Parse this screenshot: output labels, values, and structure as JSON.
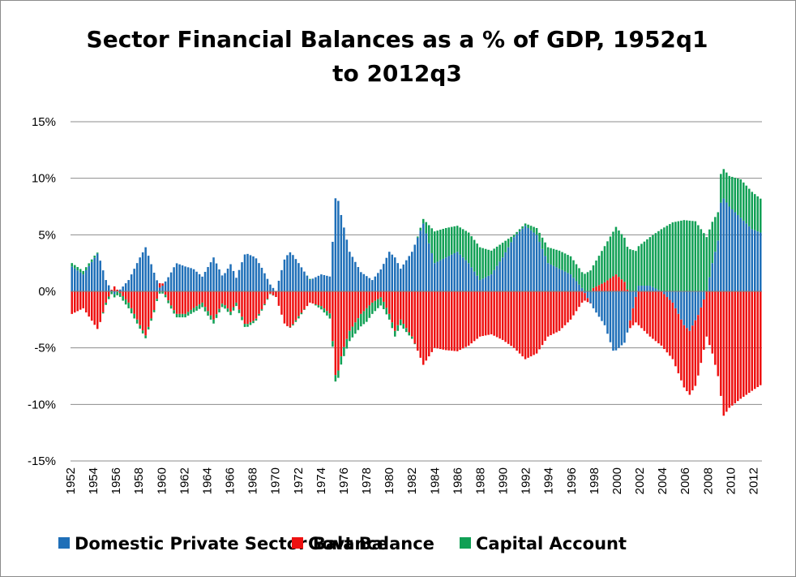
{
  "chart_data": {
    "type": "bar",
    "stacked": true,
    "title_lines": [
      "Sector Financial Balances as a % of GDP, 1952q1",
      "to 2012q3"
    ],
    "xlabel": "",
    "ylabel": "",
    "ylim": [
      -15,
      15
    ],
    "y_ticks": [
      15,
      10,
      5,
      0,
      -5,
      -10,
      -15
    ],
    "y_tick_labels": [
      "15%",
      "10%",
      "5%",
      "0%",
      "-5%",
      "-10%",
      "-15%"
    ],
    "x_tick_labels": [
      "1952",
      "1954",
      "1956",
      "1958",
      "1960",
      "1962",
      "1964",
      "1966",
      "1968",
      "1970",
      "1972",
      "1974",
      "1976",
      "1978",
      "1980",
      "1982",
      "1984",
      "1986",
      "1988",
      "1990",
      "1992",
      "1994",
      "1996",
      "1998",
      "2000",
      "2002",
      "2004",
      "2006",
      "2008",
      "2010",
      "2012"
    ],
    "x_range": [
      1952.0,
      2012.75
    ],
    "grid": true,
    "legend_position": "bottom",
    "series_keypoints_note_free": true,
    "series": [
      {
        "name": "Domestic Private Sector Balance",
        "color": "#1f6fb8",
        "keypoints": [
          [
            1952.0,
            2.2
          ],
          [
            1953.0,
            1.5
          ],
          [
            1954.3,
            3.4
          ],
          [
            1955.0,
            1.0
          ],
          [
            1955.7,
            -0.3
          ],
          [
            1956.3,
            0.2
          ],
          [
            1957.0,
            1.0
          ],
          [
            1958.0,
            3.0
          ],
          [
            1958.5,
            3.9
          ],
          [
            1959.3,
            1.5
          ],
          [
            1959.8,
            0.2
          ],
          [
            1960.6,
            1.4
          ],
          [
            1961.2,
            2.5
          ],
          [
            1962.0,
            2.2
          ],
          [
            1962.7,
            2.0
          ],
          [
            1963.5,
            1.3
          ],
          [
            1964.5,
            3.0
          ],
          [
            1965.3,
            1.3
          ],
          [
            1966.0,
            2.4
          ],
          [
            1966.5,
            1.2
          ],
          [
            1967.3,
            3.4
          ],
          [
            1968.2,
            3.0
          ],
          [
            1968.8,
            2.0
          ],
          [
            1969.5,
            0.6
          ],
          [
            1970.0,
            0.0
          ],
          [
            1970.8,
            3.0
          ],
          [
            1971.3,
            3.5
          ],
          [
            1972.0,
            2.5
          ],
          [
            1973.0,
            1.0
          ],
          [
            1974.0,
            1.5
          ],
          [
            1974.8,
            1.3
          ],
          [
            1975.3,
            9.0
          ],
          [
            1975.8,
            6.5
          ],
          [
            1976.5,
            3.5
          ],
          [
            1977.5,
            1.7
          ],
          [
            1978.5,
            1.0
          ],
          [
            1979.3,
            2.0
          ],
          [
            1980.0,
            3.5
          ],
          [
            1980.5,
            3.0
          ],
          [
            1981.0,
            2.0
          ],
          [
            1982.0,
            3.5
          ],
          [
            1983.0,
            6.0
          ],
          [
            1984.0,
            2.5
          ],
          [
            1985.0,
            3.0
          ],
          [
            1986.0,
            3.5
          ],
          [
            1987.0,
            2.5
          ],
          [
            1988.0,
            1.0
          ],
          [
            1989.0,
            1.5
          ],
          [
            1990.0,
            3.0
          ],
          [
            1991.0,
            4.8
          ],
          [
            1992.0,
            5.8
          ],
          [
            1993.0,
            5.0
          ],
          [
            1994.0,
            2.5
          ],
          [
            1995.0,
            2.0
          ],
          [
            1996.0,
            1.5
          ],
          [
            1997.0,
            0.3
          ],
          [
            1998.0,
            -1.5
          ],
          [
            1999.0,
            -3.0
          ],
          [
            1999.8,
            -5.4
          ],
          [
            2000.8,
            -4.5
          ],
          [
            2001.5,
            -1.5
          ],
          [
            2002.0,
            0.5
          ],
          [
            2003.0,
            0.5
          ],
          [
            2004.0,
            0.0
          ],
          [
            2005.0,
            -1.0
          ],
          [
            2006.0,
            -3.0
          ],
          [
            2006.5,
            -3.5
          ],
          [
            2007.3,
            -2.0
          ],
          [
            2008.0,
            0.0
          ],
          [
            2008.5,
            2.5
          ],
          [
            2009.0,
            4.5
          ],
          [
            2009.3,
            8.5
          ],
          [
            2010.0,
            7.5
          ],
          [
            2011.0,
            6.5
          ],
          [
            2012.0,
            5.5
          ],
          [
            2012.75,
            5.2
          ]
        ]
      },
      {
        "name": "Govt Balance",
        "color": "#ee1111",
        "keypoints": [
          [
            1952.0,
            -2.0
          ],
          [
            1953.0,
            -1.5
          ],
          [
            1954.3,
            -3.4
          ],
          [
            1955.0,
            -1.0
          ],
          [
            1955.7,
            0.5
          ],
          [
            1956.3,
            -0.2
          ],
          [
            1957.0,
            -1.0
          ],
          [
            1958.0,
            -3.0
          ],
          [
            1958.5,
            -3.9
          ],
          [
            1959.3,
            -1.5
          ],
          [
            1959.8,
            0.6
          ],
          [
            1960.6,
            -1.0
          ],
          [
            1961.2,
            -2.0
          ],
          [
            1962.0,
            -2.0
          ],
          [
            1962.7,
            -1.5
          ],
          [
            1963.5,
            -1.0
          ],
          [
            1964.5,
            -2.5
          ],
          [
            1965.3,
            -1.0
          ],
          [
            1966.0,
            -1.8
          ],
          [
            1966.5,
            -1.0
          ],
          [
            1967.3,
            -3.0
          ],
          [
            1968.2,
            -2.5
          ],
          [
            1968.8,
            -1.5
          ],
          [
            1969.5,
            -0.2
          ],
          [
            1970.0,
            -0.5
          ],
          [
            1970.8,
            -3.0
          ],
          [
            1971.3,
            -3.2
          ],
          [
            1972.0,
            -2.2
          ],
          [
            1973.0,
            -1.0
          ],
          [
            1974.0,
            -1.3
          ],
          [
            1974.8,
            -2.0
          ],
          [
            1975.3,
            -8.0
          ],
          [
            1975.8,
            -5.5
          ],
          [
            1976.5,
            -3.5
          ],
          [
            1977.5,
            -2.0
          ],
          [
            1978.5,
            -1.0
          ],
          [
            1979.3,
            -0.5
          ],
          [
            1980.0,
            -2.0
          ],
          [
            1980.5,
            -3.5
          ],
          [
            1981.0,
            -2.5
          ],
          [
            1982.0,
            -4.0
          ],
          [
            1983.0,
            -6.5
          ],
          [
            1984.0,
            -5.0
          ],
          [
            1985.0,
            -5.2
          ],
          [
            1986.0,
            -5.3
          ],
          [
            1987.0,
            -4.8
          ],
          [
            1988.0,
            -4.0
          ],
          [
            1989.0,
            -3.8
          ],
          [
            1990.0,
            -4.3
          ],
          [
            1991.0,
            -5.0
          ],
          [
            1992.0,
            -6.0
          ],
          [
            1993.0,
            -5.5
          ],
          [
            1994.0,
            -4.0
          ],
          [
            1995.0,
            -3.5
          ],
          [
            1996.0,
            -2.5
          ],
          [
            1997.0,
            -1.0
          ],
          [
            1998.0,
            0.3
          ],
          [
            1999.0,
            0.8
          ],
          [
            2000.0,
            1.5
          ],
          [
            2000.8,
            0.8
          ],
          [
            2001.5,
            -1.5
          ],
          [
            2002.0,
            -3.0
          ],
          [
            2003.0,
            -4.0
          ],
          [
            2004.0,
            -4.8
          ],
          [
            2005.0,
            -5.0
          ],
          [
            2006.0,
            -5.5
          ],
          [
            2007.0,
            -5.8
          ],
          [
            2008.0,
            -4.0
          ],
          [
            2008.5,
            -5.5
          ],
          [
            2009.0,
            -7.5
          ],
          [
            2009.5,
            -11.0
          ],
          [
            2010.0,
            -10.3
          ],
          [
            2011.0,
            -9.5
          ],
          [
            2012.0,
            -8.8
          ],
          [
            2012.75,
            -8.3
          ]
        ]
      },
      {
        "name": "Capital Account",
        "color": "#11a055",
        "keypoints": [
          [
            1952.0,
            0.3
          ],
          [
            1953.0,
            0.3
          ],
          [
            1954.0,
            0.2
          ],
          [
            1955.0,
            -0.2
          ],
          [
            1956.0,
            -0.3
          ],
          [
            1957.0,
            -0.5
          ],
          [
            1958.0,
            -0.3
          ],
          [
            1959.0,
            -0.2
          ],
          [
            1960.0,
            -0.2
          ],
          [
            1961.0,
            -0.3
          ],
          [
            1962.0,
            -0.3
          ],
          [
            1963.0,
            -0.4
          ],
          [
            1964.0,
            -0.4
          ],
          [
            1965.0,
            -0.3
          ],
          [
            1966.0,
            -0.3
          ],
          [
            1967.0,
            -0.3
          ],
          [
            1968.0,
            -0.2
          ],
          [
            1969.0,
            -0.1
          ],
          [
            1970.0,
            0.0
          ],
          [
            1971.0,
            0.0
          ],
          [
            1972.0,
            -0.2
          ],
          [
            1973.0,
            0.1
          ],
          [
            1974.0,
            -0.3
          ],
          [
            1975.0,
            -0.5
          ],
          [
            1976.0,
            -0.8
          ],
          [
            1977.0,
            -1.0
          ],
          [
            1978.0,
            -1.2
          ],
          [
            1979.0,
            -0.8
          ],
          [
            1980.0,
            -0.5
          ],
          [
            1981.0,
            -0.5
          ],
          [
            1982.0,
            -0.2
          ],
          [
            1983.0,
            0.4
          ],
          [
            1984.0,
            2.8
          ],
          [
            1985.0,
            2.6
          ],
          [
            1986.0,
            2.3
          ],
          [
            1987.0,
            2.7
          ],
          [
            1988.0,
            2.9
          ],
          [
            1989.0,
            2.1
          ],
          [
            1990.0,
            1.3
          ],
          [
            1991.0,
            0.2
          ],
          [
            1992.0,
            0.2
          ],
          [
            1993.0,
            0.6
          ],
          [
            1994.0,
            1.4
          ],
          [
            1995.0,
            1.6
          ],
          [
            1996.0,
            1.6
          ],
          [
            1997.0,
            1.4
          ],
          [
            1998.0,
            2.0
          ],
          [
            1999.0,
            3.2
          ],
          [
            2000.0,
            4.2
          ],
          [
            2001.0,
            3.8
          ],
          [
            2002.0,
            3.5
          ],
          [
            2003.0,
            4.3
          ],
          [
            2004.0,
            5.5
          ],
          [
            2005.0,
            6.1
          ],
          [
            2006.0,
            6.3
          ],
          [
            2007.0,
            6.2
          ],
          [
            2008.0,
            4.8
          ],
          [
            2009.0,
            2.5
          ],
          [
            2010.0,
            2.7
          ],
          [
            2011.0,
            3.4
          ],
          [
            2012.0,
            3.3
          ],
          [
            2012.75,
            3.0
          ]
        ]
      }
    ]
  }
}
